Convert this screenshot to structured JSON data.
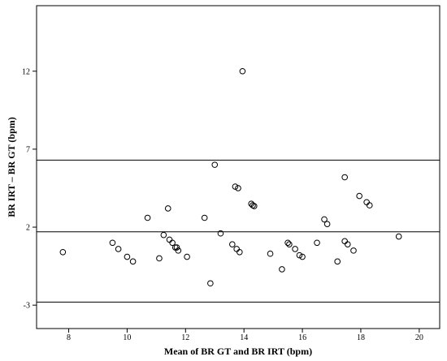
{
  "chart_data": {
    "type": "scatter",
    "title": "",
    "xlabel": "Mean of  BR GT and BR IRT (bpm)",
    "ylabel": "BR IRT – BR GT (bpm)",
    "xlim": [
      6.9,
      20.7
    ],
    "ylim": [
      -4.5,
      16.2
    ],
    "xticks": [
      8,
      10,
      12,
      14,
      16,
      18,
      20
    ],
    "yticks": [
      -3,
      2,
      7,
      12
    ],
    "grid": false,
    "reference_lines": [
      6.3,
      1.7,
      -2.8
    ],
    "series": [
      {
        "marker": "open-circle",
        "points": [
          [
            7.8,
            0.4
          ],
          [
            9.5,
            1.0
          ],
          [
            9.7,
            0.6
          ],
          [
            10.0,
            0.1
          ],
          [
            10.2,
            -0.2
          ],
          [
            10.7,
            2.6
          ],
          [
            11.1,
            0.0
          ],
          [
            11.25,
            1.5
          ],
          [
            11.4,
            3.2
          ],
          [
            11.45,
            1.2
          ],
          [
            11.55,
            1.0
          ],
          [
            11.65,
            0.7
          ],
          [
            11.7,
            0.7
          ],
          [
            11.75,
            0.5
          ],
          [
            12.05,
            0.1
          ],
          [
            12.65,
            2.6
          ],
          [
            12.85,
            -1.6
          ],
          [
            13.0,
            6.0
          ],
          [
            13.2,
            1.6
          ],
          [
            13.6,
            0.9
          ],
          [
            13.7,
            4.6
          ],
          [
            13.75,
            0.6
          ],
          [
            13.8,
            4.5
          ],
          [
            13.85,
            0.4
          ],
          [
            13.95,
            12.0
          ],
          [
            14.25,
            3.5
          ],
          [
            14.3,
            3.4
          ],
          [
            14.35,
            3.35
          ],
          [
            14.9,
            0.3
          ],
          [
            15.3,
            -0.7
          ],
          [
            15.5,
            1.0
          ],
          [
            15.55,
            0.9
          ],
          [
            15.75,
            0.6
          ],
          [
            15.9,
            0.2
          ],
          [
            16.0,
            0.1
          ],
          [
            16.5,
            1.0
          ],
          [
            16.75,
            2.5
          ],
          [
            16.85,
            2.2
          ],
          [
            17.2,
            -0.2
          ],
          [
            17.45,
            5.2
          ],
          [
            17.45,
            1.1
          ],
          [
            17.55,
            0.9
          ],
          [
            17.75,
            0.5
          ],
          [
            17.95,
            4.0
          ],
          [
            18.2,
            3.6
          ],
          [
            18.3,
            3.4
          ],
          [
            19.3,
            1.4
          ]
        ]
      }
    ]
  }
}
